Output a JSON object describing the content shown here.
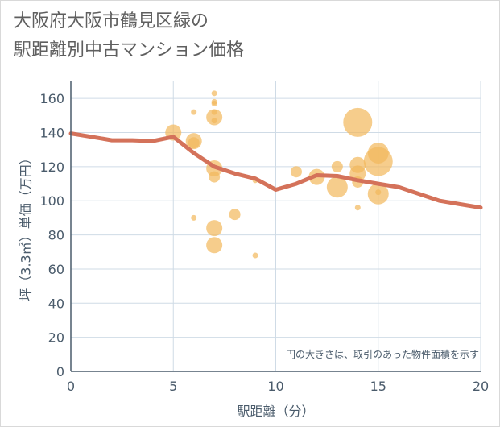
{
  "title_lines": [
    "大阪府大阪市鶴見区緑の",
    "駅距離別中古マンション価格"
  ],
  "chart_data": {
    "type": "scatter",
    "title": "大阪府大阪市鶴見区緑の駅距離別中古マンション価格",
    "xlabel": "駅距離（分）",
    "ylabel": "坪（3.3㎡）単価（万円）",
    "xlim": [
      0,
      20
    ],
    "ylim": [
      0,
      170
    ],
    "xticks": [
      0,
      5,
      10,
      15,
      20
    ],
    "yticks": [
      0,
      20,
      40,
      60,
      80,
      100,
      120,
      140,
      160
    ],
    "grid": true,
    "note": "円の大きさは、取引のあった物件面積を示す",
    "colors": {
      "bubble": "#f2b85b",
      "line": "#d4725a",
      "grid": "#cfdbe6",
      "axis": "#4a5b6b"
    },
    "scatter": [
      {
        "x": 5,
        "y": 140,
        "size": 3
      },
      {
        "x": 6,
        "y": 152,
        "size": 1
      },
      {
        "x": 6,
        "y": 135,
        "size": 3
      },
      {
        "x": 6,
        "y": 134,
        "size": 2
      },
      {
        "x": 6,
        "y": 90,
        "size": 1
      },
      {
        "x": 7,
        "y": 163,
        "size": 1
      },
      {
        "x": 7,
        "y": 158,
        "size": 1
      },
      {
        "x": 7,
        "y": 157,
        "size": 1
      },
      {
        "x": 7,
        "y": 152,
        "size": 1
      },
      {
        "x": 7,
        "y": 149,
        "size": 3
      },
      {
        "x": 7,
        "y": 147,
        "size": 1
      },
      {
        "x": 7,
        "y": 119,
        "size": 3
      },
      {
        "x": 7,
        "y": 114,
        "size": 2
      },
      {
        "x": 7,
        "y": 84,
        "size": 3
      },
      {
        "x": 7,
        "y": 74,
        "size": 3
      },
      {
        "x": 8,
        "y": 92,
        "size": 2
      },
      {
        "x": 9,
        "y": 68,
        "size": 1
      },
      {
        "x": 9,
        "y": 112,
        "size": 1
      },
      {
        "x": 11,
        "y": 117,
        "size": 2
      },
      {
        "x": 12,
        "y": 114,
        "size": 3
      },
      {
        "x": 13,
        "y": 120,
        "size": 2
      },
      {
        "x": 13,
        "y": 108,
        "size": 4
      },
      {
        "x": 14,
        "y": 146,
        "size": 5
      },
      {
        "x": 14,
        "y": 121,
        "size": 3
      },
      {
        "x": 14,
        "y": 116,
        "size": 3
      },
      {
        "x": 14,
        "y": 111,
        "size": 2
      },
      {
        "x": 14,
        "y": 96,
        "size": 1
      },
      {
        "x": 15,
        "y": 128,
        "size": 4
      },
      {
        "x": 15,
        "y": 123,
        "size": 5
      },
      {
        "x": 15,
        "y": 104,
        "size": 4
      },
      {
        "x": 15,
        "y": 105,
        "size": 1
      }
    ],
    "line": {
      "x": [
        0,
        1,
        2,
        3,
        4,
        5,
        6,
        7,
        8,
        9,
        10,
        11,
        12,
        13,
        14,
        15,
        16,
        17,
        18,
        19,
        20
      ],
      "y": [
        139.5,
        137.5,
        135.5,
        135.5,
        135,
        137.5,
        128,
        120,
        116,
        113,
        106.5,
        110,
        115,
        114.5,
        112,
        110,
        108,
        104,
        100,
        98,
        96
      ]
    }
  }
}
